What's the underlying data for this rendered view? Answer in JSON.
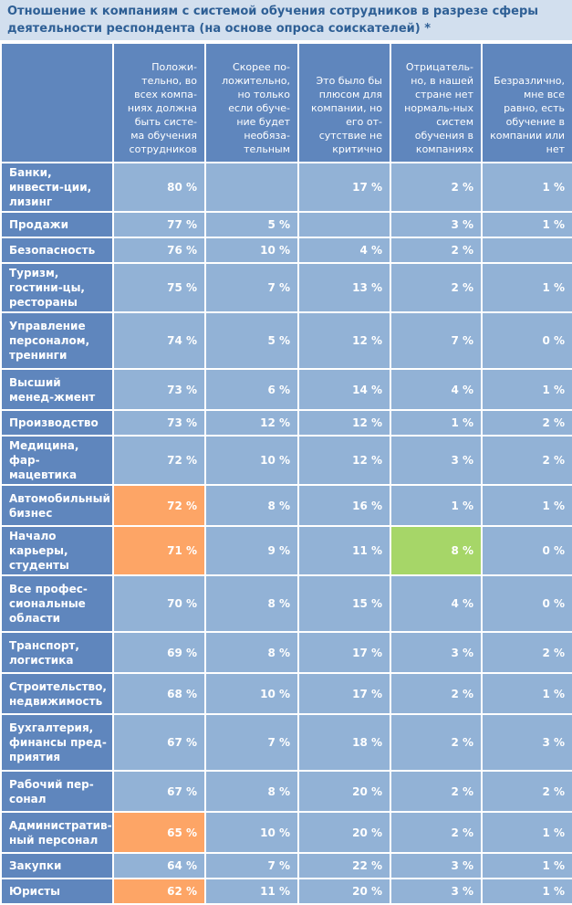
{
  "title": "Отношение к компаниям с системой обучения сотрудников в разрезе сферы деятельности респондента (на основе опроса соискателей) *",
  "colors": {
    "title_bg": "#d2dfee",
    "title_text": "#2e5f95",
    "header_bg": "#5f86bd",
    "cell_bg": "#92b2d6",
    "highlight_orange": "#fda566",
    "highlight_green": "#a6d668"
  },
  "columns": [
    "Положи-тельно, во всех компа-ниях должна быть систе-ма обучения сотрудников",
    "Скорее по-ложительно, но только если обуче-ние будет необяза-тельным",
    "Это было бы плюсом для компании, но его от-сутствие не критично",
    "Отрицатель-но, в нашей стране нет нормаль-ных систем обучения в компаниях",
    "Безразлично, мне все равно, есть обучение в компании или нет"
  ],
  "rows": [
    {
      "label": "Банки, инвести-ции, лизинг",
      "values": [
        "80 %",
        "",
        "17 %",
        "2 %",
        "1 %"
      ]
    },
    {
      "label": "Продажи",
      "values": [
        "77 %",
        "5 %",
        "",
        "3 %",
        "1 %"
      ]
    },
    {
      "label": "Безопасность",
      "values": [
        "76 %",
        "10 %",
        "4 %",
        "2 %",
        ""
      ]
    },
    {
      "label": "Туризм, гостини-цы, рестораны",
      "values": [
        "75 %",
        "7 %",
        "13 %",
        "2 %",
        "1 %"
      ]
    },
    {
      "label": "Управление персоналом, тренинги",
      "values": [
        "74 %",
        "5 %",
        "12 %",
        "7 %",
        "0 %"
      ]
    },
    {
      "label": "Высший менед-жмент",
      "values": [
        "73 %",
        "6 %",
        "14 %",
        "4 %",
        "1 %"
      ]
    },
    {
      "label": "Производство",
      "values": [
        "73 %",
        "12 %",
        "12 %",
        "1 %",
        "2 %"
      ]
    },
    {
      "label": "Медицина, фар-мацевтика",
      "values": [
        "72 %",
        "10 %",
        "12 %",
        "3 %",
        "2 %"
      ]
    },
    {
      "label": "Автомобильный бизнес",
      "values": [
        "72 %",
        "8 %",
        "16 %",
        "1 %",
        "1 %"
      ],
      "highlight": {
        "0": "orange"
      }
    },
    {
      "label": "Начало карьеры, студенты",
      "values": [
        "71 %",
        "9 %",
        "11 %",
        "8 %",
        "0 %"
      ],
      "highlight": {
        "0": "orange",
        "3": "green"
      }
    },
    {
      "label": "Все профес-сиональные области",
      "values": [
        "70 %",
        "8 %",
        "15 %",
        "4 %",
        "0 %"
      ]
    },
    {
      "label": "Транспорт, логистика",
      "values": [
        "69 %",
        "8 %",
        "17 %",
        "3 %",
        "2 %"
      ]
    },
    {
      "label": "Строительство, недвижимость",
      "values": [
        "68 %",
        "10 %",
        "17 %",
        "2 %",
        "1 %"
      ]
    },
    {
      "label": "Бухгалтерия, финансы пред-приятия",
      "values": [
        "67 %",
        "7 %",
        "18 %",
        "2 %",
        "3 %"
      ]
    },
    {
      "label": "Рабочий пер-сонал",
      "values": [
        "67 %",
        "8 %",
        "20 %",
        "2 %",
        "2 %"
      ]
    },
    {
      "label": "Административ-ный персонал",
      "values": [
        "65 %",
        "10 %",
        "20 %",
        "2 %",
        "1 %"
      ],
      "highlight": {
        "0": "orange"
      }
    },
    {
      "label": "Закупки",
      "values": [
        "64 %",
        "7 %",
        "22 %",
        "3 %",
        "1 %"
      ]
    },
    {
      "label": "Юристы",
      "values": [
        "62 %",
        "11 %",
        "20 %",
        "3 %",
        "1 %"
      ],
      "highlight": {
        "0": "orange"
      }
    }
  ]
}
